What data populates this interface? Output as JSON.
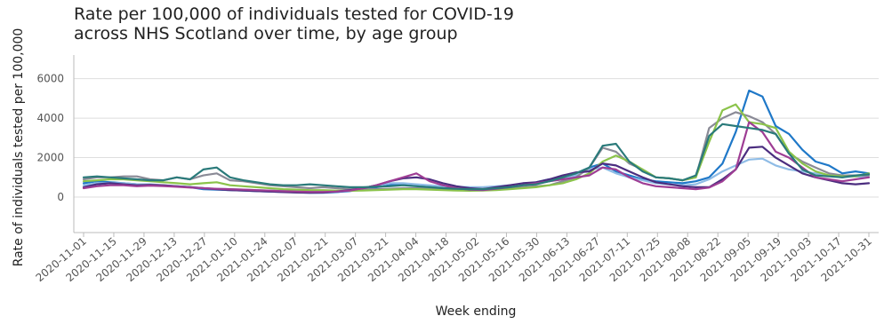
{
  "chart_data": {
    "type": "line",
    "title_line1": "Rate per 100,000 of individuals tested for COVID-19",
    "title_line2": "across NHS Scotland over time, by age group",
    "xlabel": "Week ending",
    "ylabel": "Rate of individuals tested per 100,000",
    "ylim": [
      -1800,
      7200
    ],
    "yticks": [
      0,
      2000,
      4000,
      6000
    ],
    "ytick_labels": [
      "0",
      "2000",
      "4000",
      "6000"
    ],
    "x_tick_labels": [
      "2020-11-01",
      "2020-11-15",
      "2020-11-29",
      "2020-12-13",
      "2020-12-27",
      "2021-01-10",
      "2021-01-24",
      "2021-02-07",
      "2021-02-21",
      "2021-03-07",
      "2021-03-21",
      "2021-04-04",
      "2021-04-18",
      "2021-05-02",
      "2021-05-16",
      "2021-05-30",
      "2021-06-13",
      "2021-06-27",
      "2021-07-11",
      "2021-07-25",
      "2021-08-08",
      "2021-08-22",
      "2021-09-05",
      "2021-09-19",
      "2021-10-03",
      "2021-10-17",
      "2021-10-31"
    ],
    "grid": true,
    "legend": "none",
    "series": [
      {
        "color": "#1f78c8",
        "values": [
          700,
          800,
          750,
          700,
          650,
          600,
          580,
          550,
          500,
          400,
          380,
          350,
          330,
          300,
          280,
          260,
          240,
          220,
          220,
          250,
          300,
          400,
          500,
          600,
          650,
          600,
          550,
          500,
          480,
          450,
          450,
          500,
          550,
          650,
          750,
          900,
          1000,
          1200,
          1500,
          1700,
          1300,
          1100,
          900,
          800,
          750,
          700,
          800,
          1000,
          1700,
          3300,
          5400,
          5100,
          3600,
          3200,
          2400,
          1800,
          1600,
          1200,
          1300,
          1200
        ]
      },
      {
        "color": "#8fbce6",
        "values": [
          600,
          700,
          700,
          700,
          650,
          650,
          600,
          550,
          500,
          450,
          420,
          400,
          380,
          350,
          330,
          310,
          300,
          290,
          290,
          300,
          330,
          450,
          600,
          700,
          700,
          650,
          600,
          550,
          520,
          500,
          500,
          550,
          600,
          650,
          700,
          800,
          900,
          1100,
          1400,
          1500,
          1200,
          1000,
          850,
          700,
          650,
          600,
          650,
          900,
          1300,
          1600,
          1900,
          1950,
          1600,
          1400,
          1300,
          1200,
          1100,
          1000,
          1050,
          1000
        ]
      },
      {
        "color": "#8a8a96",
        "values": [
          900,
          1000,
          1000,
          1050,
          1050,
          900,
          850,
          1000,
          900,
          1100,
          1200,
          850,
          800,
          700,
          600,
          550,
          500,
          450,
          500,
          450,
          400,
          400,
          400,
          420,
          450,
          450,
          430,
          400,
          400,
          400,
          420,
          450,
          480,
          500,
          550,
          600,
          800,
          1000,
          1500,
          2500,
          2300,
          1700,
          1400,
          1000,
          950,
          850,
          1000,
          3500,
          4000,
          4300,
          4100,
          3800,
          3200,
          2200,
          1800,
          1500,
          1200,
          1100,
          1100,
          1100
        ]
      },
      {
        "color": "#8bc34a",
        "values": [
          800,
          850,
          900,
          900,
          850,
          800,
          750,
          700,
          650,
          700,
          750,
          600,
          550,
          500,
          450,
          400,
          380,
          350,
          350,
          330,
          320,
          330,
          350,
          380,
          400,
          400,
          380,
          350,
          330,
          320,
          330,
          350,
          400,
          450,
          500,
          600,
          700,
          900,
          1200,
          1800,
          2100,
          1800,
          1400,
          1000,
          950,
          850,
          1000,
          2800,
          4400,
          4700,
          3800,
          3700,
          3500,
          2300,
          1700,
          1300,
          1100,
          1050,
          1050,
          1200
        ]
      },
      {
        "color": "#4b2d7f",
        "values": [
          500,
          650,
          700,
          650,
          600,
          620,
          600,
          550,
          500,
          450,
          400,
          350,
          330,
          300,
          280,
          250,
          230,
          220,
          230,
          280,
          350,
          450,
          600,
          800,
          950,
          1000,
          900,
          700,
          550,
          450,
          400,
          500,
          600,
          700,
          750,
          900,
          1100,
          1250,
          1300,
          1700,
          1600,
          1300,
          1000,
          750,
          650,
          550,
          500,
          500,
          900,
          1400,
          2500,
          2550,
          2000,
          1600,
          1200,
          1000,
          850,
          700,
          650,
          700
        ]
      },
      {
        "color": "#9e3d94",
        "values": [
          450,
          550,
          600,
          600,
          550,
          580,
          560,
          520,
          480,
          450,
          420,
          400,
          380,
          350,
          330,
          300,
          280,
          260,
          260,
          280,
          330,
          450,
          600,
          800,
          1000,
          1200,
          800,
          600,
          450,
          380,
          350,
          420,
          500,
          600,
          700,
          800,
          900,
          1000,
          1100,
          1500,
          1400,
          1000,
          700,
          550,
          500,
          450,
          400,
          480,
          800,
          1400,
          3800,
          3300,
          2300,
          2000,
          1500,
          1000,
          900,
          800,
          900,
          1000
        ]
      },
      {
        "color": "#2a7a7a",
        "values": [
          1000,
          1050,
          1000,
          950,
          900,
          850,
          850,
          1000,
          900,
          1400,
          1500,
          1000,
          850,
          750,
          650,
          600,
          600,
          650,
          600,
          550,
          500,
          500,
          520,
          550,
          600,
          550,
          500,
          450,
          420,
          400,
          400,
          450,
          500,
          600,
          650,
          800,
          1000,
          1200,
          1500,
          2600,
          2700,
          1800,
          1300,
          1000,
          950,
          850,
          1100,
          3100,
          3700,
          3600,
          3500,
          3400,
          3200,
          2200,
          1400,
          1100,
          1050,
          1000,
          1100,
          1150
        ]
      }
    ]
  }
}
